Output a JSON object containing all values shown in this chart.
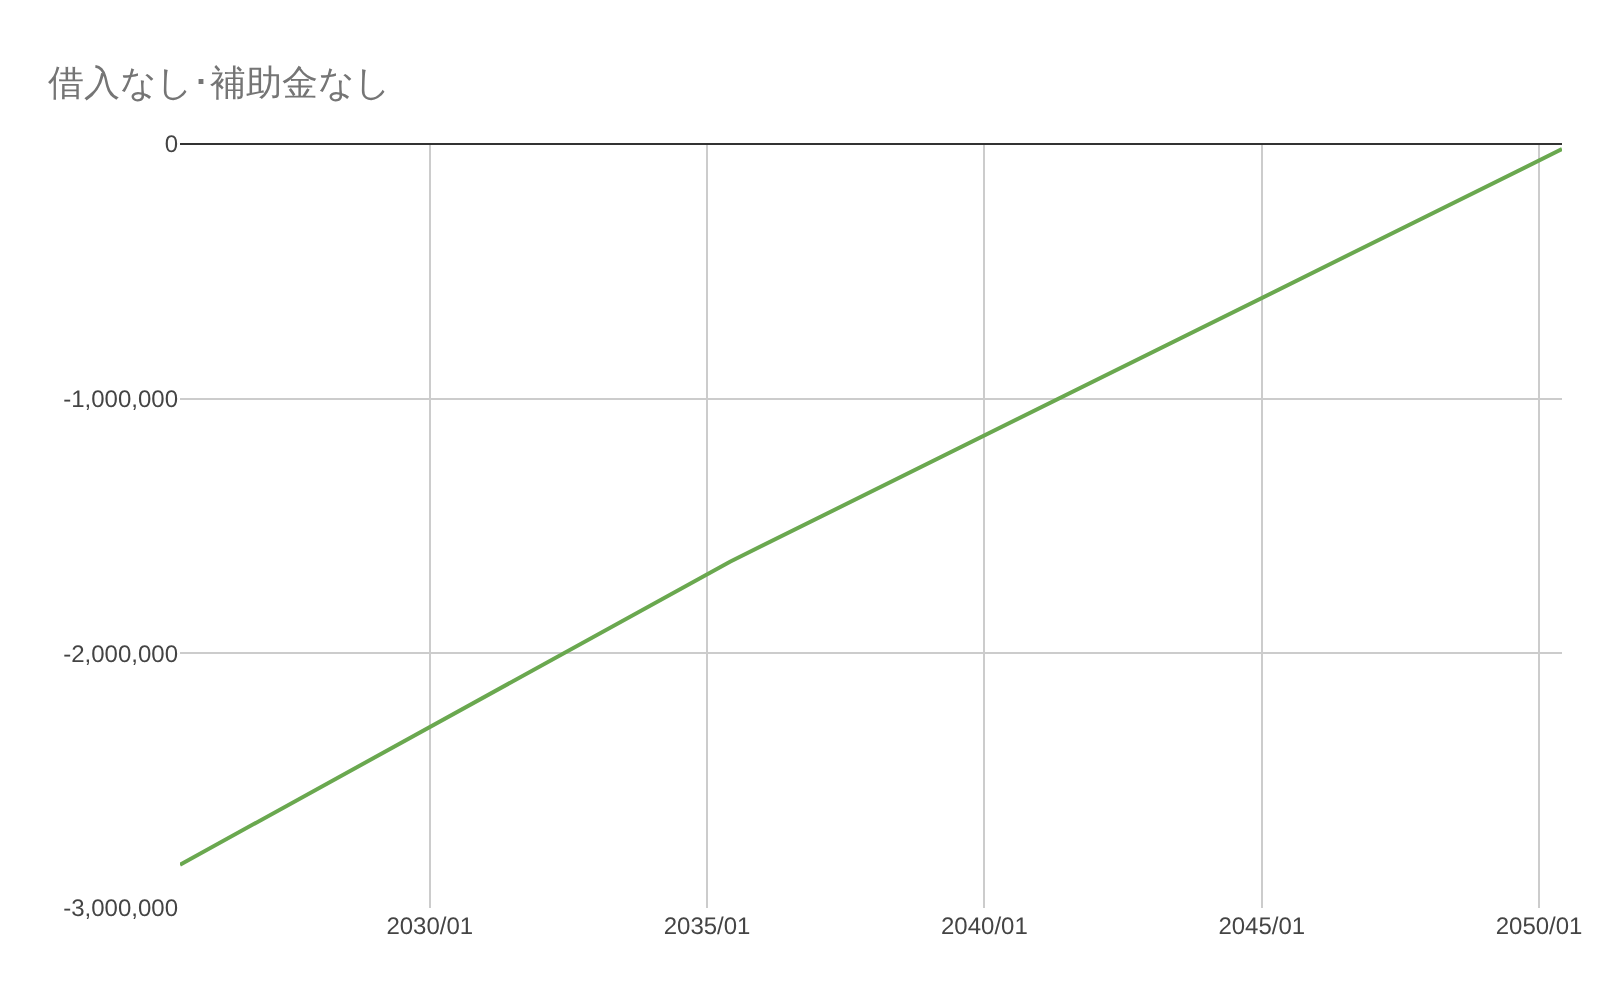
{
  "chart_data": {
    "type": "line",
    "title": "借入なし･補助金なし",
    "x": [
      "2025-07",
      "2035-06",
      "2050-06"
    ],
    "series": [
      {
        "color": "#6aa84f",
        "values": [
          -2830000,
          -1640000,
          -20000
        ]
      }
    ],
    "xlim": [
      "2025-07",
      "2050-06"
    ],
    "xticks": [
      {
        "value": "2030-01",
        "label": "2030/01"
      },
      {
        "value": "2035-01",
        "label": "2035/01"
      },
      {
        "value": "2040-01",
        "label": "2040/01"
      },
      {
        "value": "2045-01",
        "label": "2045/01"
      },
      {
        "value": "2050-01",
        "label": "2050/01"
      }
    ],
    "ylim": [
      -3000000,
      0
    ],
    "yticks": [
      {
        "value": 0,
        "label": "0"
      },
      {
        "value": -1000000,
        "label": "-1,000,000"
      },
      {
        "value": -2000000,
        "label": "-2,000,000"
      },
      {
        "value": -3000000,
        "label": "-3,000,000"
      }
    ],
    "grid": true,
    "marker": "none",
    "line_style": "solid"
  }
}
